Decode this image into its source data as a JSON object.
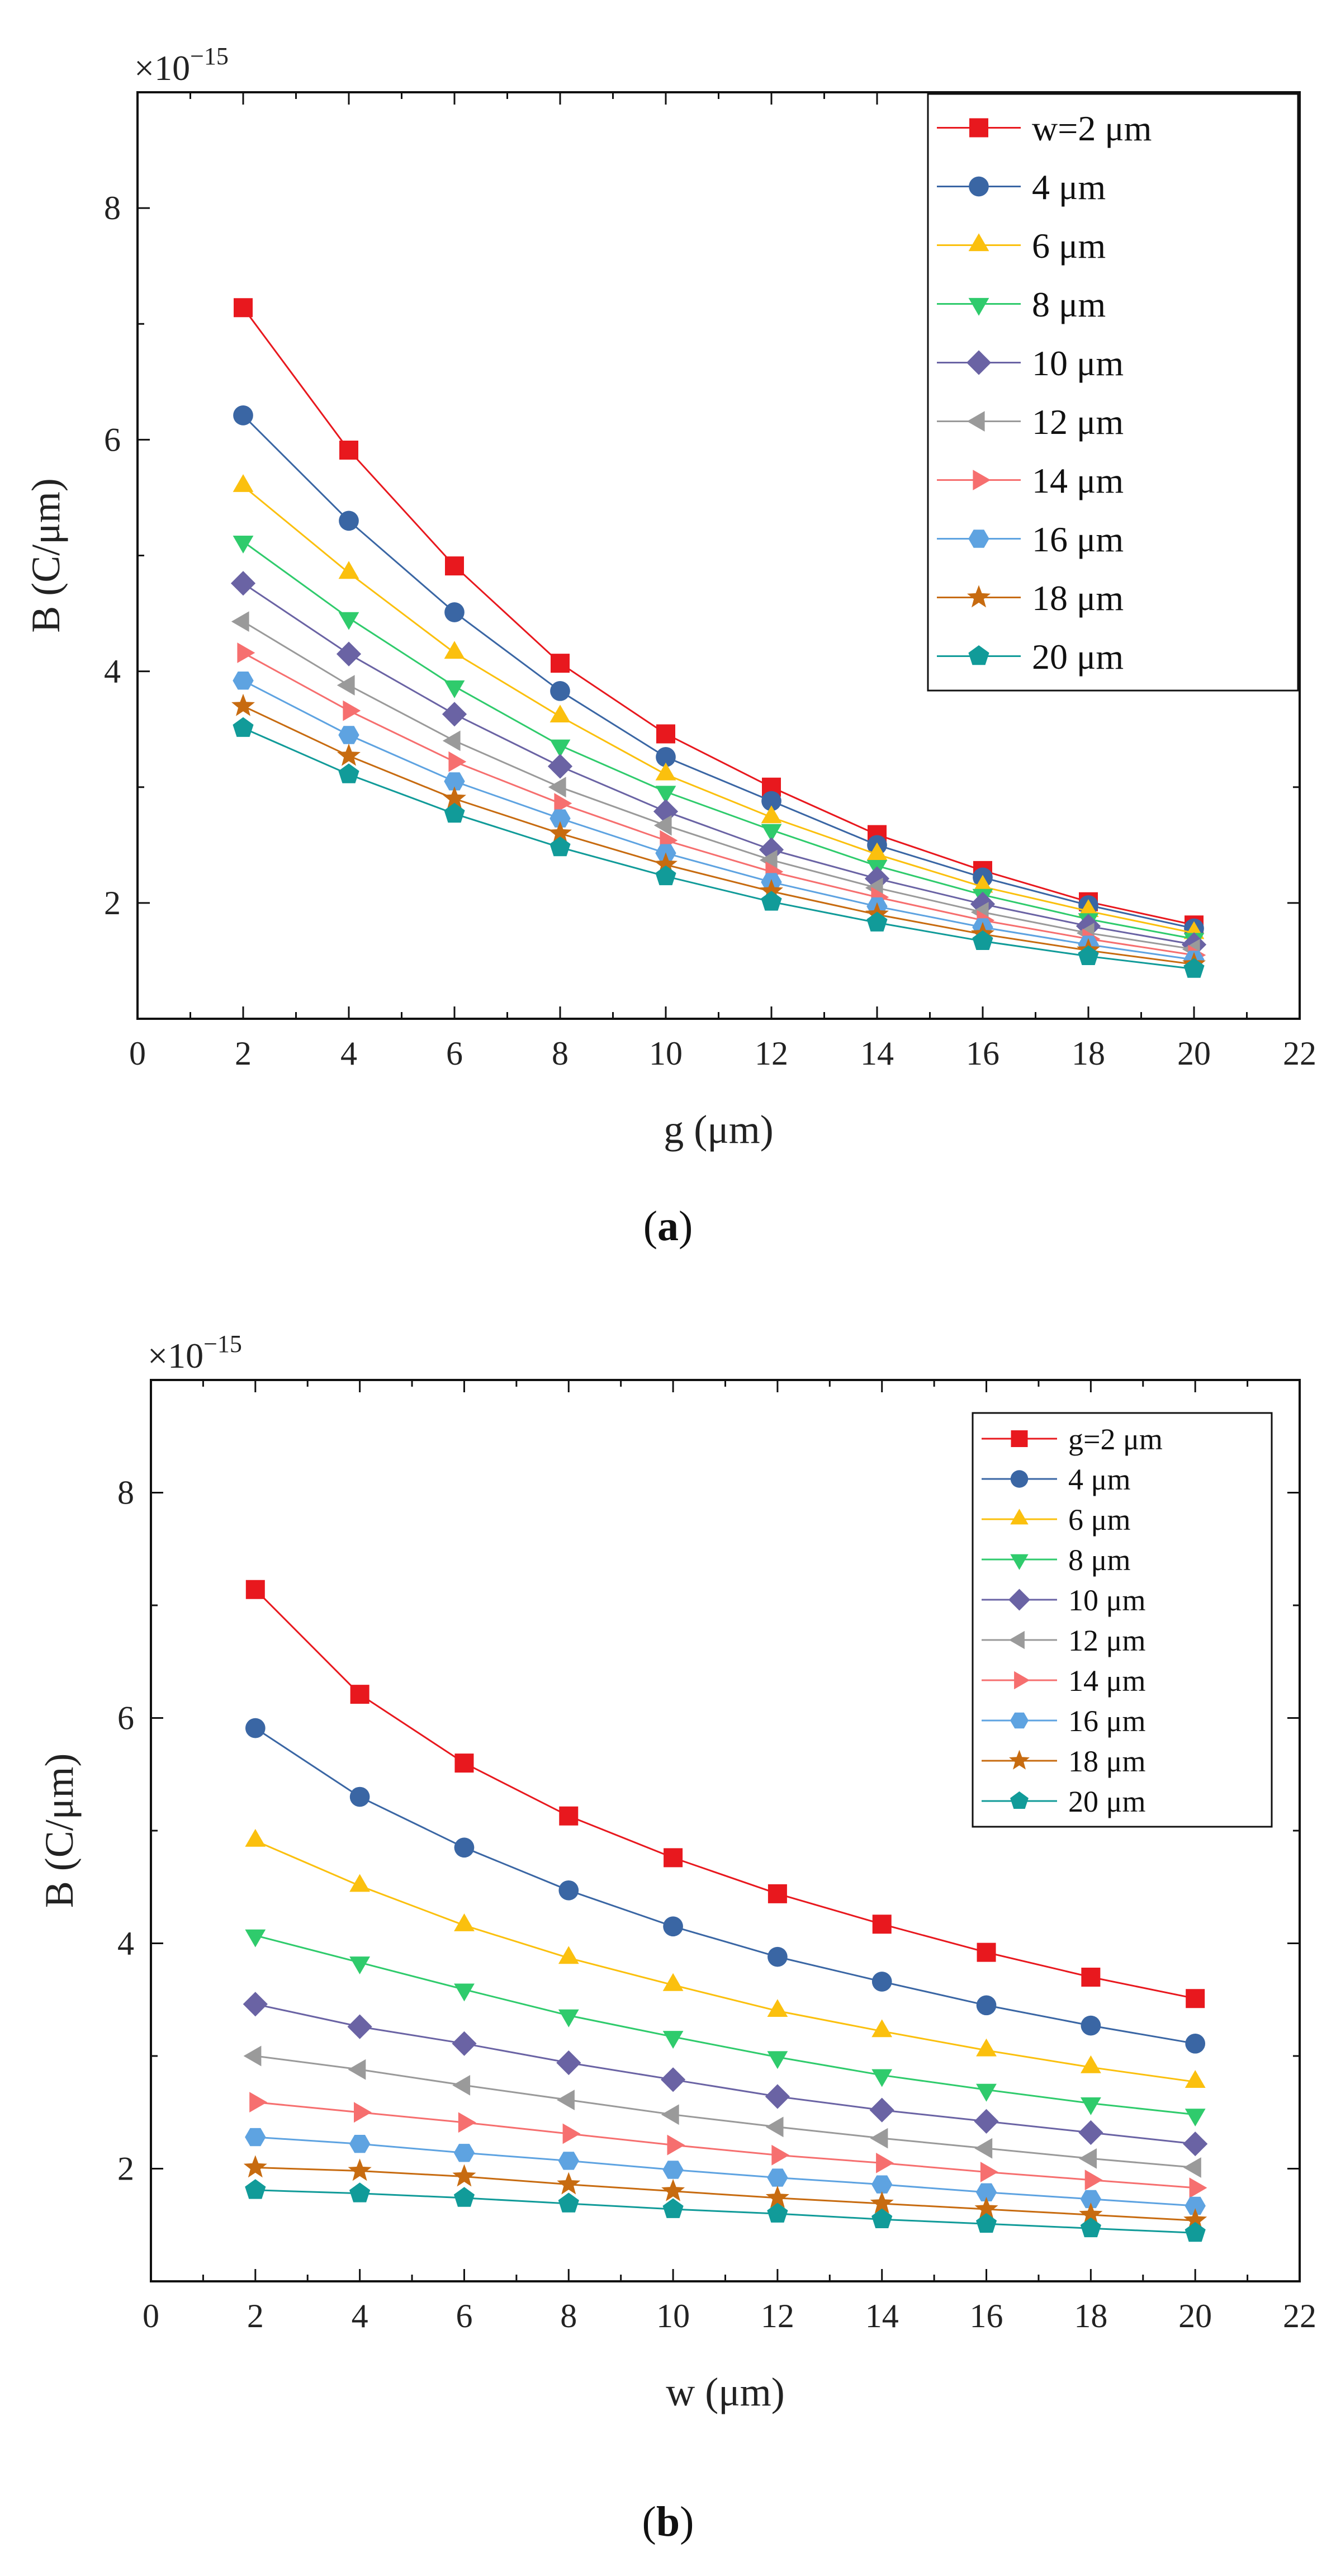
{
  "chart_data": [
    {
      "type": "line",
      "panel_label": "a",
      "exponent_label": "×10",
      "exponent_power": "−15",
      "xlabel": "g (μm)",
      "ylabel": "B (C/μm)",
      "xlim": [
        0,
        22
      ],
      "ylim": [
        1,
        9
      ],
      "xticks": [
        0,
        2,
        4,
        6,
        8,
        10,
        12,
        14,
        16,
        18,
        20,
        22
      ],
      "yticks": [
        2,
        4,
        6,
        8
      ],
      "legend_position": "top-right",
      "grid": false,
      "x": [
        2,
        4,
        6,
        8,
        10,
        12,
        14,
        16,
        18,
        20
      ],
      "series": [
        {
          "name": "w=2 μm",
          "color": "#e8181e",
          "marker": "square",
          "values": [
            7.14,
            5.91,
            4.91,
            4.07,
            3.46,
            3.0,
            2.59,
            2.28,
            2.01,
            1.81
          ]
        },
        {
          "name": "4 μm",
          "color": "#3a66a4",
          "marker": "circle",
          "values": [
            6.21,
            5.3,
            4.51,
            3.83,
            3.26,
            2.88,
            2.5,
            2.22,
            1.98,
            1.78
          ]
        },
        {
          "name": "6 μm",
          "color": "#fbc00e",
          "marker": "triangle-up",
          "values": [
            5.6,
            4.85,
            4.16,
            3.61,
            3.11,
            2.74,
            2.42,
            2.14,
            1.93,
            1.74
          ]
        },
        {
          "name": "8 μm",
          "color": "#2fcb6c",
          "marker": "triangle-down",
          "values": [
            5.12,
            4.46,
            3.87,
            3.36,
            2.96,
            2.63,
            2.32,
            2.07,
            1.86,
            1.69
          ]
        },
        {
          "name": "10 μm",
          "color": "#6a63a4",
          "marker": "diamond",
          "values": [
            4.76,
            4.15,
            3.63,
            3.18,
            2.79,
            2.46,
            2.21,
            1.99,
            1.8,
            1.64
          ]
        },
        {
          "name": "12 μm",
          "color": "#9a9a9a",
          "marker": "triangle-left",
          "values": [
            4.43,
            3.88,
            3.4,
            3.0,
            2.67,
            2.37,
            2.13,
            1.92,
            1.74,
            1.6
          ]
        },
        {
          "name": "14 μm",
          "color": "#f66f6f",
          "marker": "triangle-right",
          "values": [
            4.16,
            3.66,
            3.22,
            2.86,
            2.54,
            2.27,
            2.05,
            1.85,
            1.69,
            1.55
          ]
        },
        {
          "name": "16 μm",
          "color": "#5ea3e1",
          "marker": "hexagon",
          "values": [
            3.92,
            3.45,
            3.05,
            2.73,
            2.43,
            2.18,
            1.97,
            1.79,
            1.64,
            1.51
          ]
        },
        {
          "name": "18 μm",
          "color": "#c76b10",
          "marker": "star",
          "values": [
            3.7,
            3.27,
            2.9,
            2.6,
            2.33,
            2.1,
            1.9,
            1.73,
            1.59,
            1.47
          ]
        },
        {
          "name": "20 μm",
          "color": "#119b99",
          "marker": "pentagon",
          "values": [
            3.51,
            3.11,
            2.77,
            2.48,
            2.23,
            2.01,
            1.83,
            1.67,
            1.54,
            1.43
          ]
        }
      ]
    },
    {
      "type": "line",
      "panel_label": "b",
      "exponent_label": "×10",
      "exponent_power": "−15",
      "xlabel": "w (μm)",
      "ylabel": "B (C/μm)",
      "xlim": [
        0,
        22
      ],
      "ylim": [
        1,
        9
      ],
      "xticks": [
        0,
        2,
        4,
        6,
        8,
        10,
        12,
        14,
        16,
        18,
        20,
        22
      ],
      "yticks": [
        2,
        4,
        6,
        8
      ],
      "legend_position": "top-right",
      "grid": false,
      "x": [
        2,
        4,
        6,
        8,
        10,
        12,
        14,
        16,
        18,
        20
      ],
      "series": [
        {
          "name": "g=2 μm",
          "color": "#e8181e",
          "marker": "square",
          "values": [
            7.14,
            6.21,
            5.6,
            5.13,
            4.76,
            4.44,
            4.17,
            3.92,
            3.7,
            3.51
          ]
        },
        {
          "name": "4 μm",
          "color": "#3a66a4",
          "marker": "circle",
          "values": [
            5.91,
            5.3,
            4.85,
            4.47,
            4.15,
            3.88,
            3.66,
            3.45,
            3.27,
            3.11
          ]
        },
        {
          "name": "6 μm",
          "color": "#fbc00e",
          "marker": "triangle-up",
          "values": [
            4.91,
            4.51,
            4.16,
            3.87,
            3.63,
            3.4,
            3.22,
            3.05,
            2.9,
            2.77
          ]
        },
        {
          "name": "8 μm",
          "color": "#2fcb6c",
          "marker": "triangle-down",
          "values": [
            4.07,
            3.83,
            3.59,
            3.36,
            3.17,
            2.99,
            2.83,
            2.7,
            2.58,
            2.48
          ]
        },
        {
          "name": "10 μm",
          "color": "#6a63a4",
          "marker": "diamond",
          "values": [
            3.46,
            3.26,
            3.11,
            2.94,
            2.79,
            2.64,
            2.52,
            2.42,
            2.32,
            2.22
          ]
        },
        {
          "name": "12 μm",
          "color": "#9a9a9a",
          "marker": "triangle-left",
          "values": [
            3.0,
            2.88,
            2.74,
            2.61,
            2.48,
            2.37,
            2.27,
            2.18,
            2.09,
            2.01
          ]
        },
        {
          "name": "14 μm",
          "color": "#f66f6f",
          "marker": "triangle-right",
          "values": [
            2.59,
            2.5,
            2.41,
            2.31,
            2.21,
            2.12,
            2.05,
            1.97,
            1.9,
            1.83
          ]
        },
        {
          "name": "16 μm",
          "color": "#5ea3e1",
          "marker": "hexagon",
          "values": [
            2.28,
            2.22,
            2.14,
            2.07,
            1.99,
            1.92,
            1.86,
            1.79,
            1.73,
            1.67
          ]
        },
        {
          "name": "18 μm",
          "color": "#c76b10",
          "marker": "star",
          "values": [
            2.01,
            1.98,
            1.93,
            1.86,
            1.8,
            1.74,
            1.69,
            1.64,
            1.59,
            1.54
          ]
        },
        {
          "name": "20 μm",
          "color": "#119b99",
          "marker": "pentagon",
          "values": [
            1.81,
            1.78,
            1.74,
            1.69,
            1.64,
            1.6,
            1.55,
            1.51,
            1.47,
            1.43
          ]
        }
      ]
    }
  ]
}
